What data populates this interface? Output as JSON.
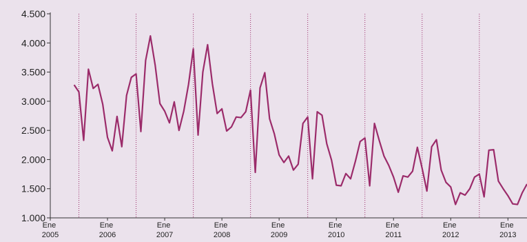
{
  "chart_data": {
    "type": "line",
    "x": [
      "2005-06",
      "2005-07",
      "2005-08",
      "2005-09",
      "2005-10",
      "2005-11",
      "2005-12",
      "2006-01",
      "2006-02",
      "2006-03",
      "2006-04",
      "2006-05",
      "2006-06",
      "2006-07",
      "2006-08",
      "2006-09",
      "2006-10",
      "2006-11",
      "2006-12",
      "2007-01",
      "2007-02",
      "2007-03",
      "2007-04",
      "2007-05",
      "2007-06",
      "2007-07",
      "2007-08",
      "2007-09",
      "2007-10",
      "2007-11",
      "2007-12",
      "2008-01",
      "2008-02",
      "2008-03",
      "2008-04",
      "2008-05",
      "2008-06",
      "2008-07",
      "2008-08",
      "2008-09",
      "2008-10",
      "2008-11",
      "2008-12",
      "2009-01",
      "2009-02",
      "2009-03",
      "2009-04",
      "2009-05",
      "2009-06",
      "2009-07",
      "2009-08",
      "2009-09",
      "2009-10",
      "2009-11",
      "2009-12",
      "2010-01",
      "2010-02",
      "2010-03",
      "2010-04",
      "2010-05",
      "2010-06",
      "2010-07",
      "2010-08",
      "2010-09",
      "2010-10",
      "2010-11",
      "2010-12",
      "2011-01",
      "2011-02",
      "2011-03",
      "2011-04",
      "2011-05",
      "2011-06",
      "2011-07",
      "2011-08",
      "2011-09",
      "2011-10",
      "2011-11",
      "2011-12",
      "2012-01",
      "2012-02",
      "2012-03",
      "2012-04",
      "2012-05",
      "2012-06",
      "2012-07",
      "2012-08",
      "2012-09",
      "2012-10",
      "2012-11",
      "2012-12",
      "2013-01",
      "2013-02",
      "2013-03",
      "2013-04",
      "2013-05"
    ],
    "series": [
      {
        "color": "#9b2b6a",
        "values": [
          3280,
          3160,
          2330,
          3550,
          3220,
          3290,
          2950,
          2380,
          2150,
          2740,
          2220,
          3100,
          3410,
          3470,
          2480,
          3700,
          4120,
          3620,
          2960,
          2830,
          2630,
          2990,
          2500,
          2830,
          3290,
          3900,
          2420,
          3500,
          3970,
          3300,
          2790,
          2870,
          2490,
          2560,
          2730,
          2720,
          2820,
          3190,
          1780,
          3230,
          3490,
          2700,
          2440,
          2080,
          1950,
          2060,
          1820,
          1920,
          2620,
          2730,
          1670,
          2820,
          2760,
          2270,
          1990,
          1560,
          1550,
          1760,
          1670,
          1970,
          2310,
          2370,
          1550,
          2620,
          2330,
          2060,
          1900,
          1700,
          1440,
          1720,
          1700,
          1800,
          2210,
          1850,
          1460,
          2220,
          2340,
          1820,
          1610,
          1530,
          1230,
          1430,
          1390,
          1500,
          1700,
          1750,
          1360,
          2160,
          2170,
          1630,
          1500,
          1380,
          1240,
          1230,
          1430,
          1580
        ]
      }
    ],
    "xlim": [
      "2005-01",
      "2013-05"
    ],
    "xticks": [
      {
        "value": "2005-01",
        "label": "Ene 2005"
      },
      {
        "value": "2006-01",
        "label": "Ene 2006"
      },
      {
        "value": "2007-01",
        "label": "Ene 2007"
      },
      {
        "value": "2008-01",
        "label": "Ene 2008"
      },
      {
        "value": "2009-01",
        "label": "Ene 2009"
      },
      {
        "value": "2010-01",
        "label": "Ene 2010"
      },
      {
        "value": "2011-01",
        "label": "Ene 2011"
      },
      {
        "value": "2012-01",
        "label": "Ene 2012"
      },
      {
        "value": "2013-01",
        "label": "Ene 2013"
      }
    ],
    "ylim": [
      1000,
      4500
    ],
    "yticks": [
      {
        "value": 1000,
        "label": "1.000"
      },
      {
        "value": 1500,
        "label": "1.500"
      },
      {
        "value": 2000,
        "label": "2.000"
      },
      {
        "value": 2500,
        "label": "2.500"
      },
      {
        "value": 3000,
        "label": "3.000"
      },
      {
        "value": 3500,
        "label": "3.500"
      },
      {
        "value": 4000,
        "label": "4.000"
      },
      {
        "value": 4500,
        "label": "4.500"
      }
    ],
    "grid": true
  }
}
